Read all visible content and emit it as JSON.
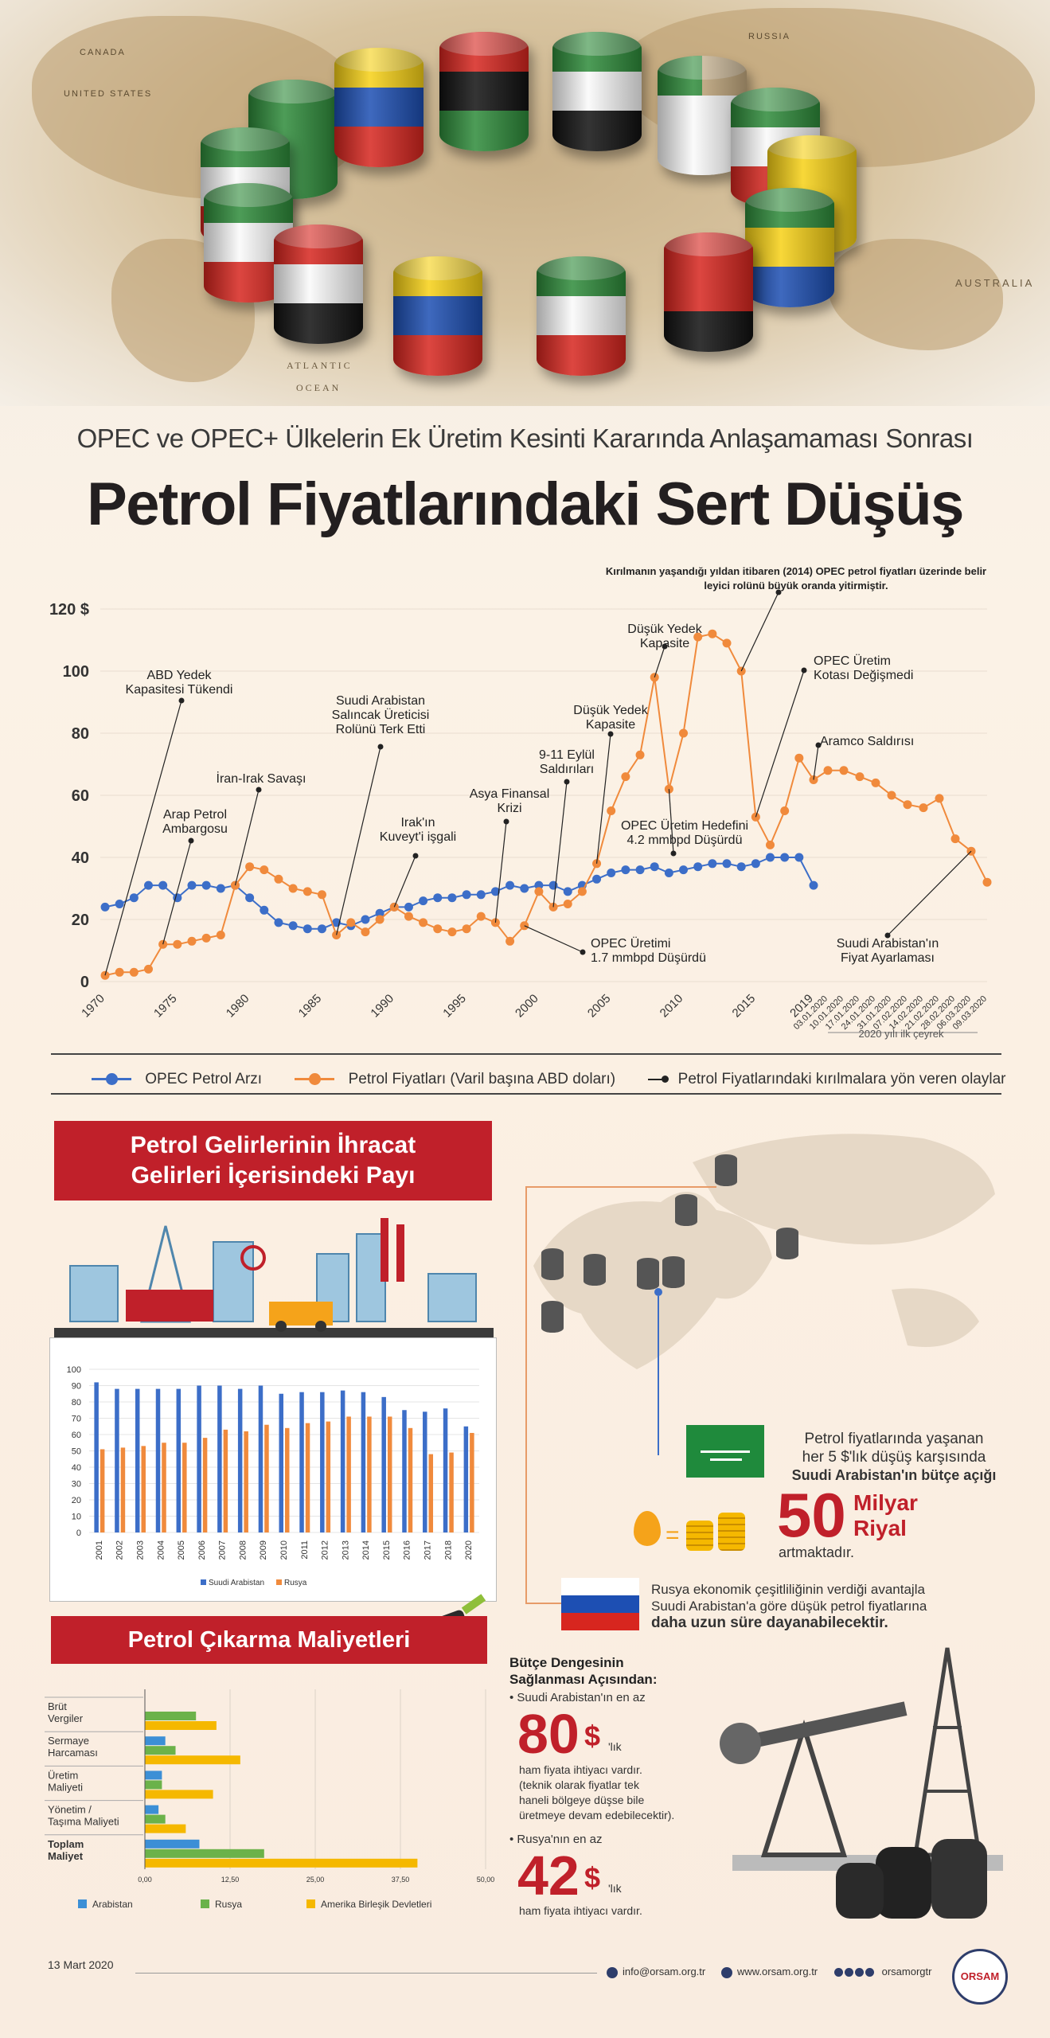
{
  "header": {
    "map_labels": [
      "ATLANTIC",
      "OCEAN",
      "AUSTRALIA",
      "UNITED STATES",
      "CANADA",
      "RUSSIA"
    ],
    "subtitle": "OPEC ve OPEC+ Ülkelerin Ek Üretim Kesinti Kararında Anlaşamaması Sonrası",
    "title": "Petrol Fiyatlarındaki Sert Düşüş"
  },
  "colors": {
    "accent_red": "#c0202a",
    "opec_blue": "#3c6ec8",
    "price_orange": "#f08a3c",
    "russia_green": "#6bb24a",
    "usa_yellow": "#f5b800"
  },
  "chart_data": [
    {
      "type": "line",
      "ylim": [
        0,
        120
      ],
      "yticks": [
        "0",
        "20",
        "40",
        "60",
        "80",
        "100",
        "120 $"
      ],
      "xticks": [
        "1970",
        "1975",
        "1980",
        "1985",
        "1990",
        "1995",
        "2000",
        "2005",
        "2010",
        "2015",
        "2019",
        "03.01.2020",
        "10.01.2020",
        "17.01.2020",
        "24.01.2020",
        "31.01.2020",
        "07.02.2020",
        "14.02.2020",
        "21.02.2020",
        "28.02.2020",
        "06.03.2020",
        "09.03.2020"
      ],
      "quarter_label": "2020 yılı ilk çeyrek",
      "x": [
        "1970",
        "1971",
        "1972",
        "1973",
        "1974",
        "1975",
        "1976",
        "1977",
        "1978",
        "1979",
        "1980",
        "1981",
        "1982",
        "1983",
        "1984",
        "1985",
        "1986",
        "1987",
        "1988",
        "1989",
        "1990",
        "1991",
        "1992",
        "1993",
        "1994",
        "1995",
        "1996",
        "1997",
        "1998",
        "1999",
        "2000",
        "2001",
        "2002",
        "2003",
        "2004",
        "2005",
        "2006",
        "2007",
        "2008",
        "2009",
        "2010",
        "2011",
        "2012",
        "2013",
        "2014",
        "2015",
        "2016",
        "2017",
        "2018",
        "2019",
        "03.01.2020",
        "10.01.2020",
        "17.01.2020",
        "24.01.2020",
        "31.01.2020",
        "07.02.2020",
        "14.02.2020",
        "21.02.2020",
        "28.02.2020",
        "06.03.2020",
        "09.03.2020"
      ],
      "series": [
        {
          "name": "OPEC Petrol Arzı",
          "color": "#3c6ec8",
          "values": [
            24,
            25,
            27,
            31,
            31,
            27,
            31,
            31,
            30,
            31,
            27,
            23,
            19,
            18,
            17,
            17,
            19,
            18,
            20,
            22,
            24,
            24,
            26,
            27,
            27,
            28,
            28,
            29,
            31,
            30,
            31,
            31,
            29,
            31,
            33,
            35,
            36,
            36,
            37,
            35,
            36,
            37,
            38,
            38,
            37,
            38,
            40,
            40,
            40,
            31,
            null,
            null,
            null,
            null,
            null,
            null,
            null,
            null,
            null,
            null,
            null
          ]
        },
        {
          "name": "Petrol Fiyatları (Varil başına ABD doları)",
          "color": "#f08a3c",
          "values": [
            2,
            3,
            3,
            4,
            12,
            12,
            13,
            14,
            15,
            31,
            37,
            36,
            33,
            30,
            29,
            28,
            15,
            19,
            16,
            20,
            24,
            21,
            19,
            17,
            16,
            17,
            21,
            19,
            13,
            18,
            29,
            24,
            25,
            29,
            38,
            55,
            66,
            73,
            98,
            62,
            80,
            111,
            112,
            109,
            100,
            53,
            44,
            55,
            72,
            65,
            68,
            68,
            66,
            64,
            60,
            57,
            56,
            59,
            46,
            42,
            32
          ]
        }
      ],
      "annotations": [
        "Kırılmanın yaşandığı yıldan itibaren (2014) OPEC petrol fiyatları üzerinde belirleyici rolünü büyük oranda yitirmiştir.",
        "Düşük Yedek Kapasite",
        "OPEC Üretim Kotası Değişmedi",
        "ABD Yedek Kapasitesi Tükendi",
        "Suudi Arabistan Salıncak Üreticisi Rolünü Terk Etti",
        "Düşük Yedek Kapasite",
        "Aramco Saldırısı",
        "9-11 Eylül Saldırıları",
        "İran-Irak Savaşı",
        "Asya Finansal Krizi",
        "Arap Petrol Ambargosu",
        "Irak'ın Kuveyt'i işgali",
        "OPEC Üretim Hedefini 4.2 mmbpd Düşürdü",
        "OPEC Üretimi 1.7 mmbpd Düşürdü",
        "Suudi Arabistan'ın Fiyat Ayarlaması"
      ]
    },
    {
      "type": "bar",
      "title": "Petrol Gelirlerinin İhracat Gelirleri İçerisindeki Payı",
      "ylim": [
        0,
        100
      ],
      "yticks": [
        "0",
        "10",
        "20",
        "30",
        "40",
        "50",
        "60",
        "70",
        "80",
        "90",
        "100"
      ],
      "categories": [
        "2001",
        "2002",
        "2003",
        "2004",
        "2005",
        "2006",
        "2007",
        "2008",
        "2009",
        "2010",
        "2011",
        "2012",
        "2013",
        "2014",
        "2015",
        "2016",
        "2017",
        "2018",
        "2020"
      ],
      "series": [
        {
          "name": "Suudi Arabistan",
          "color": "#3c6ec8",
          "values": [
            92,
            88,
            88,
            88,
            88,
            90,
            90,
            88,
            90,
            85,
            86,
            86,
            87,
            86,
            83,
            75,
            74,
            76,
            65
          ]
        },
        {
          "name": "Rusya",
          "color": "#f08a3c",
          "values": [
            51,
            52,
            53,
            55,
            55,
            58,
            63,
            62,
            66,
            64,
            67,
            68,
            71,
            71,
            71,
            64,
            48,
            49,
            61
          ]
        }
      ]
    },
    {
      "type": "bar",
      "orientation": "horizontal",
      "title": "Petrol Çıkarma Maliyetleri",
      "xlim": [
        0,
        50
      ],
      "xticks": [
        "0,00",
        "12,50",
        "25,00",
        "37,50",
        "50,00"
      ],
      "categories": [
        "Brüt Vergiler",
        "Sermaye Harcaması",
        "Üretim Maliyeti",
        "Yönetim / Taşıma Maliyeti",
        "Toplam Maliyet"
      ],
      "series": [
        {
          "name": "Arabistan",
          "color": "#3c8fd6",
          "values": [
            0,
            3,
            2.5,
            2,
            8
          ]
        },
        {
          "name": "Rusya",
          "color": "#6bb24a",
          "values": [
            7.5,
            4.5,
            2.5,
            3,
            17.5
          ]
        },
        {
          "name": "Amerika Birleşik Devletleri",
          "color": "#f5b800",
          "values": [
            10.5,
            14,
            10,
            6,
            40
          ]
        }
      ]
    }
  ],
  "legend": {
    "opec": "OPEC Petrol Arzı",
    "price": "Petrol Fiyatları (Varil başına ABD doları)",
    "events": "Petrol Fiyatlarındaki kırılmalara yön veren olaylar"
  },
  "revenue": {
    "title_line1": "Petrol Gelirlerinin İhracat",
    "title_line2": "Gelirleri İçerisindeki Payı"
  },
  "cost": {
    "title": "Petrol Çıkarma Maliyetleri",
    "labels": [
      "Brüt\nVergiler",
      "Sermaye\nHarcaması",
      "Üretim\nMaliyeti",
      "Yönetim /\nTaşıma Maliyeti",
      "Toplam\nMaliyet"
    ]
  },
  "saudi": {
    "line1": "Petrol fiyatlarında yaşanan",
    "line2": "her 5 $'lık düşüş karşısında",
    "line3": "Suudi Arabistan'ın bütçe açığı",
    "amount": "50",
    "unit1": "Milyar",
    "unit2": "Riyal",
    "tail": "artmaktadır."
  },
  "russia": {
    "line1": "Rusya ekonomik çeşitliliğinin verdiği avantajla",
    "line2": "Suudi Arabistan'a göre düşük petrol fiyatlarına",
    "line3": "daha uzun süre dayanabilecektir."
  },
  "budget": {
    "title1": "Bütçe Dengesinin",
    "title2": "Sağlanması Açısından:",
    "saudi_intro": "• Suudi Arabistan'ın en az",
    "saudi_value": "80",
    "currency": "$",
    "suffix": "'lık",
    "saudi_text1": "ham fiyata ihtiyacı vardır.",
    "saudi_text2": "(teknik olarak fiyatlar tek",
    "saudi_text3": "haneli bölgeye düşse bile",
    "saudi_text4": "üretmeye devam edebilecektir).",
    "russia_intro": "• Rusya'nın en az",
    "russia_value": "42",
    "russia_text": "ham fiyata ihtiyacı vardır."
  },
  "footer": {
    "date": "13 Mart 2020",
    "email": "info@orsam.org.tr",
    "web": "www.orsam.org.tr",
    "social": "orsamorgtr",
    "logo": "ORSAM"
  }
}
